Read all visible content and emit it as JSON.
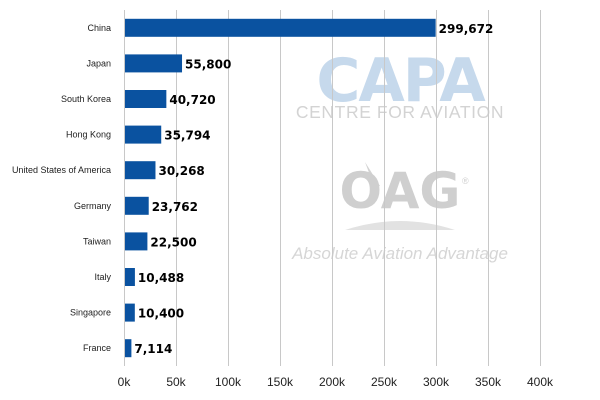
{
  "watermark": {
    "capa_main": "CAPA",
    "capa_sub": "CENTRE FOR AVIATION",
    "oag_main": "OAG",
    "oag_registered": "®",
    "oag_tagline": "Absolute Aviation Advantage"
  },
  "chart_data": {
    "type": "bar",
    "orientation": "horizontal",
    "categories": [
      "China",
      "Japan",
      "South Korea",
      "Hong Kong",
      "United States of America",
      "Germany",
      "Taiwan",
      "Italy",
      "Singapore",
      "France"
    ],
    "values": [
      299672,
      55800,
      40720,
      35794,
      30268,
      23762,
      22500,
      10488,
      10400,
      7114
    ],
    "value_labels": [
      "299,672",
      "55,800",
      "40,720",
      "35,794",
      "30,268",
      "23,762",
      "22,500",
      "10,488",
      "10,400",
      "7,114"
    ],
    "xlim": [
      0,
      400000
    ],
    "xticks": [
      0,
      50000,
      100000,
      150000,
      200000,
      250000,
      300000,
      350000,
      400000
    ],
    "xtick_labels": [
      "0k",
      "50k",
      "100k",
      "150k",
      "200k",
      "250k",
      "300k",
      "350k",
      "400k"
    ],
    "title": "",
    "xlabel": "",
    "ylabel": "",
    "grid": true,
    "legend": false,
    "bar_color": "#0a52a0",
    "grid_color": "#c8c8c8"
  }
}
